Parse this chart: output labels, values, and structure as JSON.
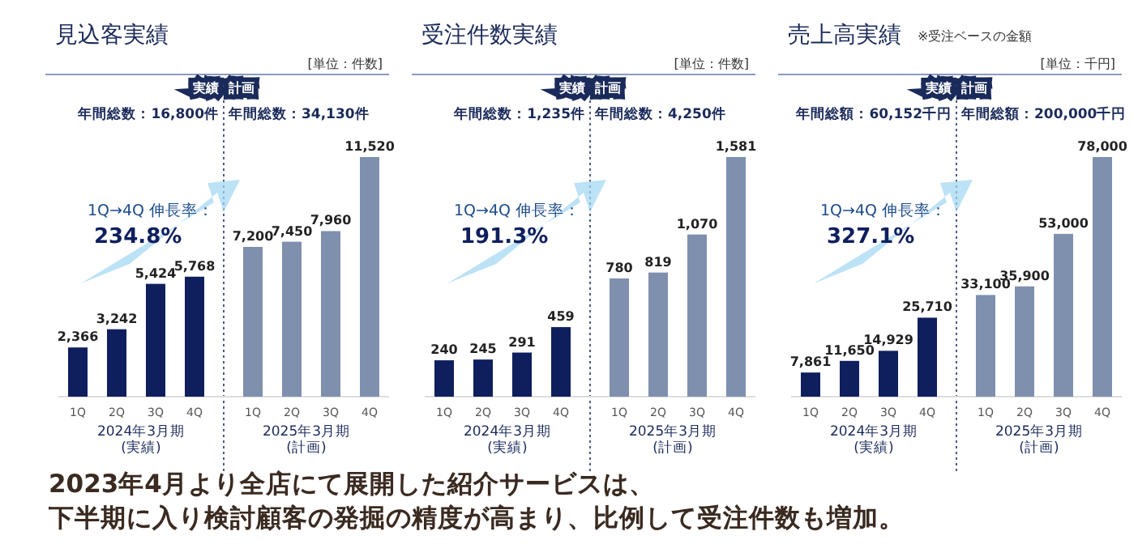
{
  "chart_data": [
    {
      "type": "bar",
      "title": "見込客実績",
      "categories": [
        "1Q",
        "2Q",
        "3Q",
        "4Q",
        "1Q",
        "2Q",
        "3Q",
        "4Q"
      ],
      "values": [
        2366,
        3242,
        5424,
        5768,
        7200,
        7450,
        7960,
        11520
      ],
      "value_labels": [
        "2,366",
        "3,242",
        "5,424",
        "5,768",
        "7,200",
        "7,450",
        "7,960",
        "11,520"
      ],
      "colors": [
        "#0f1f5e",
        "#0f1f5e",
        "#0f1f5e",
        "#0f1f5e",
        "#7f8fae",
        "#7f8fae",
        "#7f8fae",
        "#7f8fae"
      ],
      "annotations": [
        "[単位：件数]",
        "実績",
        "計画",
        "年間総数：16,800件",
        "年間総数：34,130件",
        "1Q→4Q 伸長率：",
        "234.8%",
        "2024年3月期\n(実績)",
        "2025年3月期\n(計画)"
      ]
    },
    {
      "type": "bar",
      "title": "受注件数実績",
      "categories": [
        "1Q",
        "2Q",
        "3Q",
        "4Q",
        "1Q",
        "2Q",
        "3Q",
        "4Q"
      ],
      "values": [
        240,
        245,
        291,
        459,
        780,
        819,
        1070,
        1581
      ],
      "value_labels": [
        "240",
        "245",
        "291",
        "459",
        "780",
        "819",
        "1,070",
        "1,581"
      ],
      "colors": [
        "#0f1f5e",
        "#0f1f5e",
        "#0f1f5e",
        "#0f1f5e",
        "#7f8fae",
        "#7f8fae",
        "#7f8fae",
        "#7f8fae"
      ],
      "annotations": [
        "[単位：件数]",
        "実績",
        "計画",
        "年間総数：1,235件",
        "年間総数：4,250件",
        "1Q→4Q 伸長率：",
        "191.3%",
        "2024年3月期\n(実績)",
        "2025年3月期\n(計画)"
      ]
    },
    {
      "type": "bar",
      "title": "売上高実績",
      "subtitle": "※受注ベースの金額",
      "categories": [
        "1Q",
        "2Q",
        "3Q",
        "4Q",
        "1Q",
        "2Q",
        "3Q",
        "4Q"
      ],
      "values": [
        7861,
        11650,
        14929,
        25710,
        33100,
        35900,
        53000,
        78000
      ],
      "value_labels": [
        "7,861",
        "11,650",
        "14,929",
        "25,710",
        "33,100",
        "35,900",
        "53,000",
        "78,000"
      ],
      "colors": [
        "#0f1f5e",
        "#0f1f5e",
        "#0f1f5e",
        "#0f1f5e",
        "#7f8fae",
        "#7f8fae",
        "#7f8fae",
        "#7f8fae"
      ],
      "annotations": [
        "[単位：千円]",
        "実績",
        "計画",
        "年間総額：60,152千円",
        "年間総額：200,000千円",
        "1Q→4Q 伸長率：",
        "327.1%",
        "2024年3月期\n(実績)",
        "2025年3月期\n(計画)"
      ]
    },
    {
      "type": "other",
      "annotations": [
        "2023年4月より全店にて展開した紹介サービスは、",
        "下半期に入り検討顧客の発掘の精度が高まり、比例して受注件数も増加。"
      ]
    }
  ]
}
